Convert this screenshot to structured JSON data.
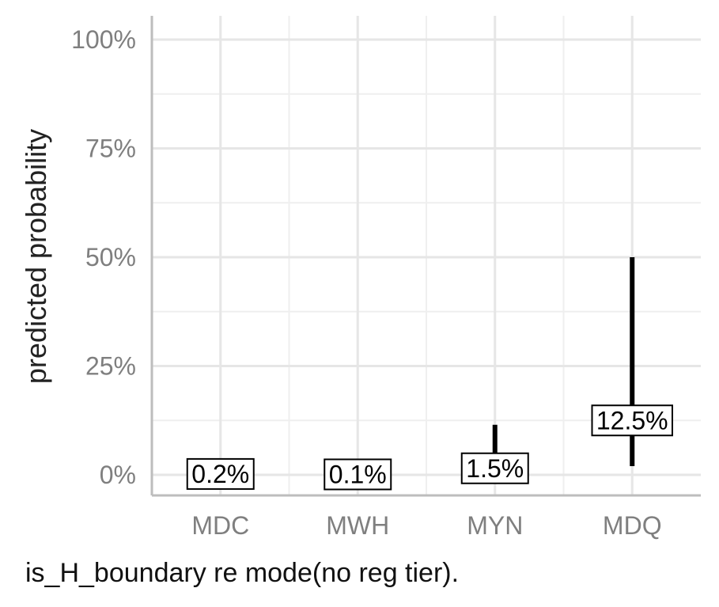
{
  "chart_data": {
    "type": "errorbar",
    "categories": [
      "MDC",
      "MWH",
      "MYN",
      "MDQ"
    ],
    "values": [
      0.2,
      0.1,
      1.5,
      12.5
    ],
    "lower": [
      0.0,
      0.0,
      0.0,
      2.0
    ],
    "upper": [
      0.5,
      0.3,
      11.5,
      50.0
    ],
    "value_labels": [
      "0.2%",
      "0.1%",
      "1.5%",
      "12.5%"
    ],
    "ylabel": "predicted probability",
    "caption": "is_H_boundary re mode(no reg tier).",
    "ylim": [
      0,
      100
    ],
    "yticks": [
      0,
      25,
      50,
      75,
      100
    ],
    "ytick_labels": [
      "0%",
      "25%",
      "50%",
      "75%",
      "100%"
    ],
    "grid": true
  }
}
